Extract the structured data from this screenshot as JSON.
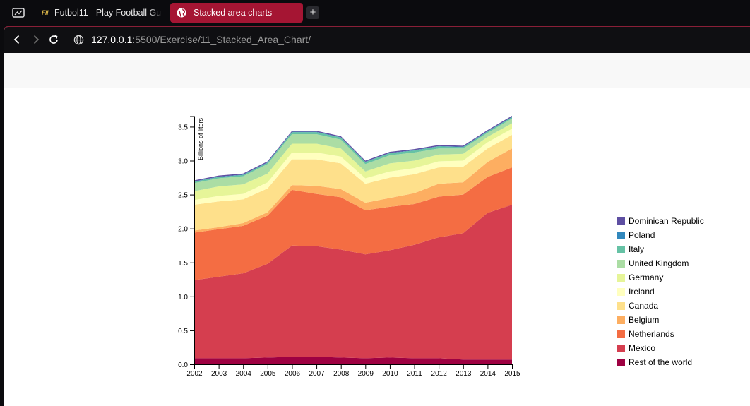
{
  "tabs": [
    {
      "label": "Futbol11 - Play Football Gu",
      "favicon": "FII",
      "active": false
    },
    {
      "label": "Stacked area charts",
      "active": true
    }
  ],
  "new_tab_label": "+",
  "address": {
    "host": "127.0.0.1",
    "path": ":5500/Exercise/11_Stacked_Area_Chart/"
  },
  "icons": {
    "sidebar": "sidebar-toggle-icon",
    "back": "back-arrow-icon",
    "forward": "forward-arrow-icon",
    "reload": "reload-icon",
    "site": "globe-icon"
  },
  "chart_data": {
    "type": "area",
    "stacked": true,
    "title": "",
    "xlabel": "",
    "ylabel": "Billions of liters",
    "x": [
      2002,
      2003,
      2004,
      2005,
      2006,
      2007,
      2008,
      2009,
      2010,
      2011,
      2012,
      2013,
      2014,
      2015
    ],
    "xlim": [
      2002,
      2015
    ],
    "ylim": [
      0,
      3.65
    ],
    "yticks": [
      0.0,
      0.5,
      1.0,
      1.5,
      2.0,
      2.5,
      3.0,
      3.5
    ],
    "ytick_labels": [
      "0.0",
      "0.5",
      "1.0",
      "1.5",
      "2.0",
      "2.5",
      "3.0",
      "3.5"
    ],
    "legend_position": "right",
    "series": [
      {
        "name": "Rest of the world",
        "color": "#9e0142",
        "values": [
          0.09,
          0.09,
          0.09,
          0.1,
          0.11,
          0.11,
          0.1,
          0.09,
          0.1,
          0.09,
          0.09,
          0.07,
          0.07,
          0.07
        ]
      },
      {
        "name": "Mexico",
        "color": "#d53e4f",
        "values": [
          1.15,
          1.2,
          1.25,
          1.38,
          1.64,
          1.63,
          1.59,
          1.53,
          1.58,
          1.67,
          1.78,
          1.86,
          2.16,
          2.28
        ]
      },
      {
        "name": "Netherlands",
        "color": "#f46d43",
        "values": [
          0.7,
          0.7,
          0.7,
          0.71,
          0.82,
          0.77,
          0.77,
          0.65,
          0.64,
          0.6,
          0.6,
          0.57,
          0.53,
          0.55
        ]
      },
      {
        "name": "Belgium",
        "color": "#fdae61",
        "values": [
          0.03,
          0.03,
          0.04,
          0.05,
          0.07,
          0.12,
          0.12,
          0.11,
          0.13,
          0.16,
          0.19,
          0.18,
          0.22,
          0.28
        ]
      },
      {
        "name": "Canada",
        "color": "#fee08b",
        "values": [
          0.38,
          0.38,
          0.35,
          0.35,
          0.38,
          0.39,
          0.38,
          0.28,
          0.3,
          0.28,
          0.24,
          0.23,
          0.2,
          0.2
        ]
      },
      {
        "name": "Ireland",
        "color": "#ffffbf",
        "values": [
          0.07,
          0.08,
          0.08,
          0.09,
          0.1,
          0.1,
          0.1,
          0.08,
          0.09,
          0.09,
          0.09,
          0.09,
          0.09,
          0.09
        ]
      },
      {
        "name": "Germany",
        "color": "#e6f598",
        "values": [
          0.13,
          0.14,
          0.14,
          0.13,
          0.13,
          0.13,
          0.12,
          0.1,
          0.12,
          0.11,
          0.1,
          0.1,
          0.08,
          0.08
        ]
      },
      {
        "name": "United Kingdom",
        "color": "#abdda4",
        "values": [
          0.12,
          0.12,
          0.12,
          0.14,
          0.14,
          0.14,
          0.13,
          0.11,
          0.12,
          0.12,
          0.09,
          0.08,
          0.06,
          0.07
        ]
      },
      {
        "name": "Italy",
        "color": "#66c2a5",
        "values": [
          0.02,
          0.02,
          0.02,
          0.02,
          0.03,
          0.03,
          0.03,
          0.03,
          0.03,
          0.03,
          0.03,
          0.02,
          0.02,
          0.02
        ]
      },
      {
        "name": "Poland",
        "color": "#3288bd",
        "values": [
          0.005,
          0.005,
          0.005,
          0.005,
          0.005,
          0.005,
          0.005,
          0.005,
          0.005,
          0.005,
          0.005,
          0.005,
          0.005,
          0.005
        ]
      },
      {
        "name": "Dominican Republic",
        "color": "#5e4fa2",
        "values": [
          0.015,
          0.015,
          0.015,
          0.015,
          0.015,
          0.015,
          0.015,
          0.015,
          0.015,
          0.015,
          0.015,
          0.015,
          0.015,
          0.015
        ]
      }
    ]
  }
}
